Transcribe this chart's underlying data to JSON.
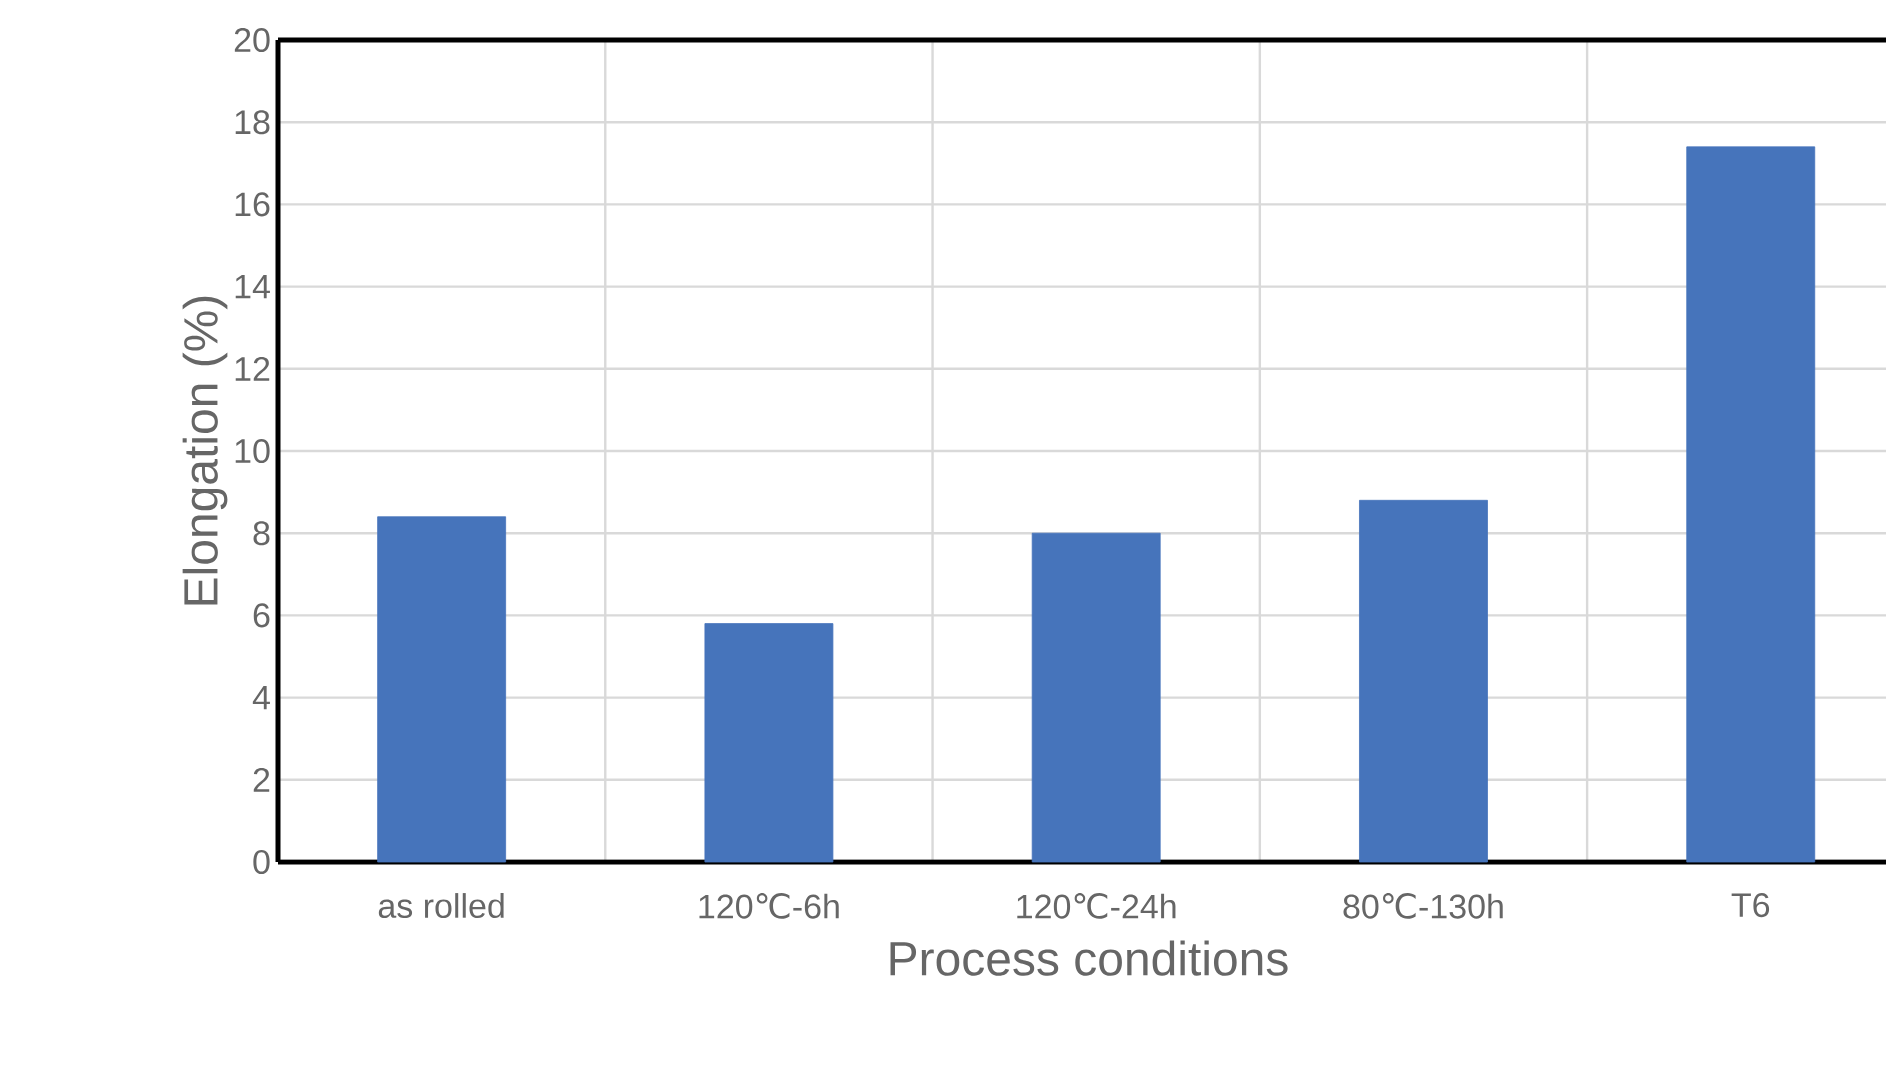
{
  "chart_data": {
    "type": "bar",
    "xlabel": "Process conditions",
    "ylabel": "Elongation (%)",
    "categories": [
      "as rolled",
      "120℃-6h",
      "120℃-24h",
      "80℃-130h",
      "T6"
    ],
    "values": [
      8.4,
      5.8,
      8.0,
      8.8,
      17.4
    ],
    "color": "#4674bb",
    "ylim": [
      0,
      20
    ],
    "yticks": [
      0,
      2,
      4,
      6,
      8,
      10,
      12,
      14,
      16,
      18,
      20
    ],
    "grid": true
  }
}
